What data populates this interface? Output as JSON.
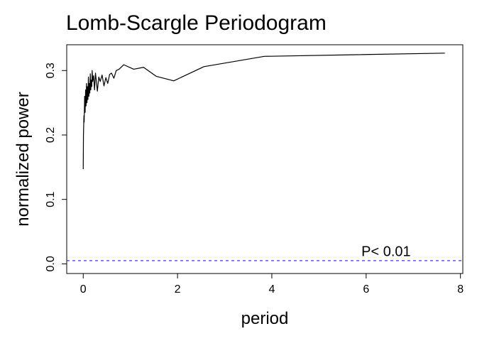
{
  "chart_data": {
    "type": "line",
    "title": "Lomb-Scargle Periodogram",
    "xlabel": "period",
    "ylabel": "normalized power",
    "xlim": [
      -0.35,
      8.05
    ],
    "ylim": [
      -0.015,
      0.34
    ],
    "xticks": [
      0,
      2,
      4,
      6,
      8
    ],
    "yticks": [
      0.0,
      0.1,
      0.2,
      0.3
    ],
    "xtick_labels": [
      "0",
      "2",
      "4",
      "6",
      "8"
    ],
    "ytick_labels": [
      "0.0",
      "0.1",
      "0.2",
      "0.3"
    ],
    "grid": false,
    "series": [
      {
        "color": "#000000",
        "x": [
          0.0,
          0.005,
          0.01,
          0.015,
          0.02,
          0.03,
          0.04,
          0.05,
          0.06,
          0.07,
          0.08,
          0.09,
          0.1,
          0.11,
          0.12,
          0.13,
          0.14,
          0.15,
          0.16,
          0.17,
          0.18,
          0.19,
          0.2,
          0.22,
          0.24,
          0.26,
          0.28,
          0.3,
          0.33,
          0.36,
          0.4,
          0.44,
          0.48,
          0.52,
          0.56,
          0.6,
          0.65,
          0.7,
          0.76,
          0.86,
          1.07,
          1.28,
          1.55,
          1.92,
          2.56,
          3.84,
          7.67
        ],
        "y": [
          0.147,
          0.2,
          0.215,
          0.23,
          0.22,
          0.26,
          0.235,
          0.27,
          0.245,
          0.28,
          0.25,
          0.275,
          0.255,
          0.29,
          0.26,
          0.28,
          0.265,
          0.295,
          0.27,
          0.285,
          0.275,
          0.3,
          0.283,
          0.292,
          0.27,
          0.296,
          0.282,
          0.268,
          0.29,
          0.283,
          0.293,
          0.276,
          0.289,
          0.28,
          0.294,
          0.296,
          0.288,
          0.3,
          0.302,
          0.309,
          0.302,
          0.305,
          0.291,
          0.284,
          0.306,
          0.322,
          0.327
        ]
      }
    ],
    "reference_lines": [
      {
        "y": 0.005,
        "color": "#3b3bcc",
        "style": "dashed"
      }
    ],
    "annotations": [
      {
        "text": "P< 0.01",
        "x": 5.9,
        "y": 0.012
      }
    ]
  }
}
